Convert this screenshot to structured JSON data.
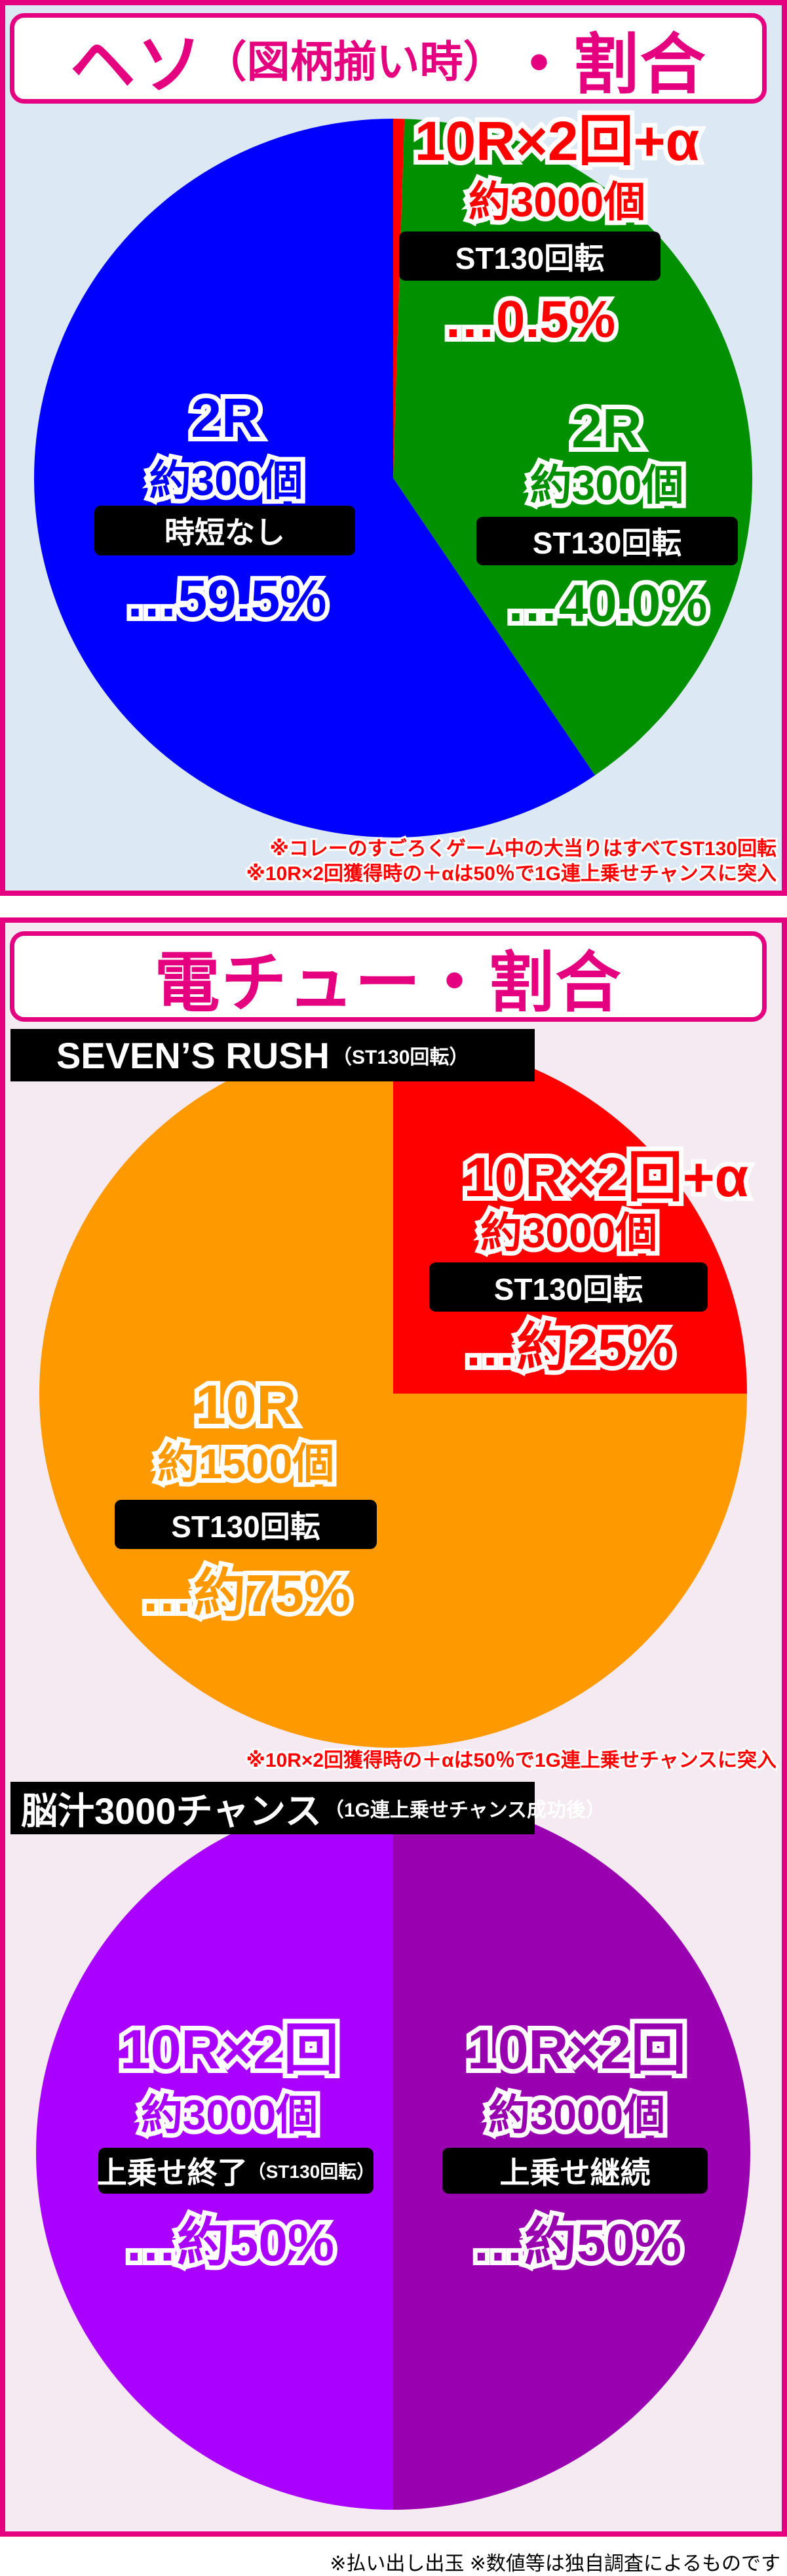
{
  "colors": {
    "border": "#e4007f",
    "section1_bg": "#dce9f5",
    "section2_bg": "#f5eaf1"
  },
  "section1": {
    "title_main_a": "ヘソ",
    "title_sub": "（図柄揃い時）",
    "title_main_b": "・割合",
    "notes": [
      "※コレーのすごろくゲーム中の大当りはすべてST130回転",
      "※10R×2回獲得時の＋αは50％で1G連上乗せチャンスに突入"
    ]
  },
  "section2": {
    "title": "電チュー・割合",
    "rush_label": "SEVEN’S RUSH",
    "rush_sub": "（ST130回転）",
    "note": "※10R×2回獲得時の＋αは50％で1G連上乗せチャンスに突入",
    "chance_label": "脳汁3000チャンス",
    "chance_sub": "（1G連上乗せチャンス成功後）"
  },
  "footer": "※払い出し出玉 ※数値等は独自調査によるものです",
  "chart_data": [
    {
      "type": "pie",
      "start": "top",
      "direction": "clockwise",
      "slices": [
        {
          "rounds": "10R×2回+α",
          "balls": "約3000個",
          "mode": "ST130回転",
          "percent_label": "…0.5%",
          "value": 0.5,
          "color": "#ff0000"
        },
        {
          "rounds": "2R",
          "balls": "約300個",
          "mode": "ST130回転",
          "percent_label": "…40.0%",
          "value": 40.0,
          "color": "#009000"
        },
        {
          "rounds": "2R",
          "balls": "約300個",
          "mode": "時短なし",
          "percent_label": "…59.5%",
          "value": 59.5,
          "color": "#0000ff"
        }
      ]
    },
    {
      "type": "pie",
      "start": "top",
      "direction": "clockwise",
      "slices": [
        {
          "rounds": "10R×2回+α",
          "balls": "約3000個",
          "mode": "ST130回転",
          "percent_label": "…約25%",
          "value": 25,
          "color": "#ff0000"
        },
        {
          "rounds": "10R",
          "balls": "約1500個",
          "mode": "ST130回転",
          "percent_label": "…約75%",
          "value": 75,
          "color": "#ff9900"
        }
      ]
    },
    {
      "type": "pie",
      "start": "top",
      "direction": "clockwise",
      "slices": [
        {
          "rounds": "10R×2回",
          "balls": "約3000個",
          "mode": "上乗せ継続",
          "percent_label": "…約50%",
          "value": 50,
          "color": "#9900b0"
        },
        {
          "rounds": "10R×2回",
          "balls": "約3000個",
          "mode": "上乗せ終了",
          "mode_sub": "（ST130回転）",
          "percent_label": "…約50%",
          "value": 50,
          "color": "#aa00ff"
        }
      ]
    }
  ]
}
